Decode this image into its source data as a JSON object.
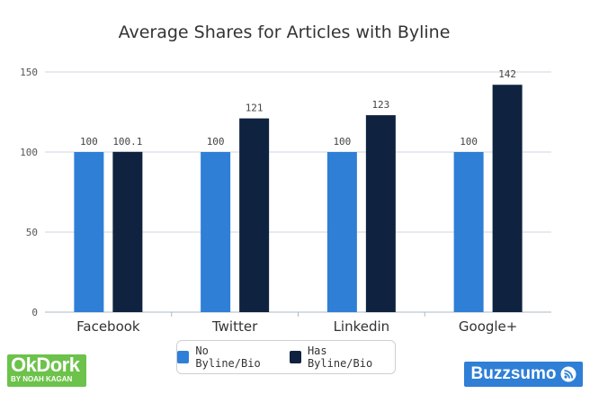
{
  "chart_data": {
    "type": "bar",
    "title": "Average Shares for Articles with Byline",
    "xlabel": "",
    "ylabel": "",
    "categories": [
      "Facebook",
      "Twitter",
      "Linkedin",
      "Google+"
    ],
    "series": [
      {
        "name": "No Byline/Bio",
        "values": [
          100,
          100,
          100,
          100
        ],
        "labels": [
          "100",
          "100",
          "100",
          "100"
        ],
        "color": "#2f7fd6"
      },
      {
        "name": "Has Byline/Bio",
        "values": [
          100.1,
          121,
          123,
          142
        ],
        "labels": [
          "100.1",
          "121",
          "123",
          "142"
        ],
        "color": "#0f2340"
      }
    ],
    "ylim": [
      0,
      150
    ],
    "yticks": [
      0,
      50,
      100,
      150
    ],
    "grid": true,
    "legend_position": "bottom"
  },
  "logos": {
    "left_main": "OkDork",
    "left_sub": "BY NOAH KAGAN",
    "right": "Buzzsumo",
    "right_icon": "rss-icon"
  }
}
